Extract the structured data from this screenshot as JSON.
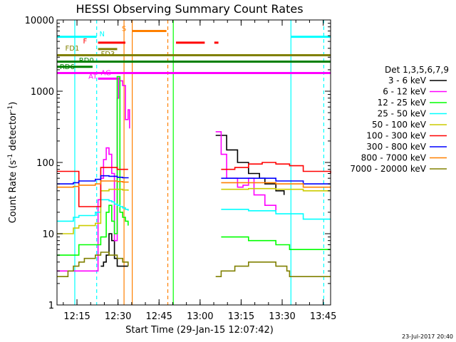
{
  "chart_data": {
    "type": "line",
    "title": "HESSI Observing Summary Count Rates",
    "xlabel": "Start Time (29-Jan-15 12:07:42)",
    "ylabel": "Count Rate (s",
    "ylabel_sup1": "-1",
    "ylabel_mid": " detector",
    "ylabel_sup2": "-1",
    "ylabel_end": ")",
    "footer": "23-Jul-2017 20:40",
    "x_unit": "minutes since 12:07:42",
    "xlim": [
      0,
      100
    ],
    "ylim": [
      1,
      10000
    ],
    "yscale": "log",
    "x_ticks": [
      "12:15",
      "12:30",
      "12:45",
      "13:00",
      "13:15",
      "13:30",
      "13:45"
    ],
    "x_tick_values": [
      7.3,
      22.3,
      37.3,
      52.3,
      67.3,
      82.3,
      97.3
    ],
    "y_ticks": [
      "1",
      "10",
      "100",
      "1000",
      "10000"
    ],
    "y_tick_values": [
      1,
      10,
      100,
      1000,
      10000
    ],
    "legend_title": "Det 1,3,5,6,7,9",
    "legend_position": "right",
    "series": [
      {
        "name": "3 - 6 keV",
        "color": "#000000",
        "x": [
          0,
          14,
          16,
          17,
          18,
          19,
          20,
          21,
          22,
          23,
          24,
          25,
          26,
          26.5,
          57,
          58,
          62,
          66,
          70,
          74,
          76,
          80,
          83,
          84
        ],
        "values": [
          0,
          0,
          3.5,
          4,
          5,
          10,
          8,
          4.5,
          3.5,
          3.5,
          3.5,
          3.5,
          3.5,
          0,
          0,
          240,
          150,
          100,
          70,
          60,
          50,
          40,
          35,
          0
        ]
      },
      {
        "name": "6 - 12 keV",
        "color": "#ff00ff",
        "x": [
          0,
          14,
          15,
          16,
          17,
          18,
          19,
          20,
          21,
          22,
          22.5,
          23,
          24,
          25,
          26,
          26.5,
          57,
          58,
          60,
          62,
          66,
          68,
          70,
          72,
          76,
          80,
          84
        ],
        "values": [
          3,
          3,
          30,
          60,
          110,
          160,
          130,
          70,
          8,
          800,
          1500,
          1400,
          1200,
          400,
          550,
          300,
          0,
          270,
          130,
          60,
          45,
          48,
          60,
          35,
          25,
          20,
          0
        ]
      },
      {
        "name": "12 - 25 keV",
        "color": "#00ff00",
        "x": [
          0,
          6,
          8,
          14,
          16,
          18,
          19,
          20,
          21,
          22,
          23,
          24,
          25,
          26,
          26.5,
          57,
          60,
          70,
          80,
          85,
          90,
          95,
          100
        ],
        "values": [
          5,
          5,
          7,
          7,
          9,
          20,
          25,
          15,
          10,
          1600,
          20,
          17,
          15,
          13,
          0,
          0,
          9,
          8,
          7,
          6,
          6,
          6,
          6
        ]
      },
      {
        "name": "25 - 50 keV",
        "color": "#00ffff",
        "x": [
          0,
          6,
          8,
          14,
          16,
          19,
          20,
          21,
          22,
          23,
          24,
          25,
          26,
          26.5,
          57,
          60,
          70,
          80,
          90,
          100
        ],
        "values": [
          15,
          17,
          18,
          20,
          30,
          29,
          28,
          26,
          25,
          24,
          23,
          22,
          21,
          0,
          0,
          22,
          21,
          19,
          16,
          16
        ]
      },
      {
        "name": "50 - 100 keV",
        "color": "#cccc00",
        "x": [
          0,
          6,
          8,
          14,
          16,
          19,
          22,
          24,
          26,
          26.5,
          57,
          60,
          70,
          80,
          90,
          100
        ],
        "values": [
          10,
          12,
          13,
          14,
          40,
          42,
          42,
          41,
          40,
          0,
          0,
          42,
          43,
          42,
          40,
          40
        ]
      },
      {
        "name": "100 - 300 keV",
        "color": "#ff0000",
        "x": [
          0,
          6,
          8,
          14,
          16,
          19,
          22,
          24,
          26,
          26.5,
          57,
          60,
          65,
          70,
          75,
          80,
          85,
          90,
          100
        ],
        "values": [
          75,
          75,
          24,
          24,
          85,
          85,
          80,
          80,
          80,
          0,
          0,
          80,
          85,
          95,
          100,
          95,
          90,
          75,
          70
        ]
      },
      {
        "name": "300 - 800 keV",
        "color": "#0000ff",
        "x": [
          0,
          6,
          8,
          14,
          16,
          19,
          22,
          24,
          26,
          26.5,
          57,
          60,
          70,
          80,
          90,
          100
        ],
        "values": [
          50,
          52,
          55,
          58,
          65,
          64,
          62,
          61,
          60,
          0,
          0,
          60,
          60,
          55,
          50,
          50
        ]
      },
      {
        "name": "800 - 7000 keV",
        "color": "#ff8000",
        "x": [
          0,
          6,
          8,
          14,
          16,
          19,
          22,
          24,
          26,
          26.5,
          57,
          60,
          70,
          80,
          90,
          100
        ],
        "values": [
          45,
          46,
          48,
          50,
          55,
          55,
          54,
          53,
          52,
          0,
          0,
          52,
          52,
          50,
          45,
          45
        ]
      },
      {
        "name": "7000 - 20000 keV",
        "color": "#808000",
        "x": [
          0,
          4,
          6,
          8,
          10,
          14,
          16,
          19,
          22,
          24,
          26,
          26.5,
          57,
          58,
          60,
          65,
          70,
          75,
          80,
          84,
          85,
          90,
          95,
          100
        ],
        "values": [
          2.5,
          3,
          3.5,
          4,
          4.5,
          5,
          5.5,
          5,
          4.5,
          4,
          3.5,
          0,
          0,
          2.5,
          3,
          3.5,
          4,
          4,
          3.5,
          3,
          2.5,
          2.5,
          2.5,
          2.5
        ]
      }
    ],
    "annotations": [
      {
        "label": "N",
        "color": "#00ffff",
        "y": 5800,
        "segments": [
          [
            0,
            14.5
          ],
          [
            85.5,
            100
          ]
        ],
        "label_x": 15.5,
        "label_y": 6300,
        "label_anchor": "start"
      },
      {
        "label": "S",
        "color": "#ff8000",
        "y": 7000,
        "segments": [
          [
            27.5,
            40
          ]
        ],
        "label_x": 24.5,
        "label_y": 7500,
        "label_anchor": "middle"
      },
      {
        "label": "F",
        "color": "#ff0000",
        "y": 4800,
        "segments": [
          [
            15,
            25
          ],
          [
            43.5,
            54
          ],
          [
            57.5,
            59
          ]
        ],
        "label_x": 9.5,
        "label_y": 5000,
        "label_anchor": "start"
      },
      {
        "label": "FD1",
        "color": "#808000",
        "y": 3900,
        "segments": [
          [
            15,
            22
          ]
        ],
        "label_x": 3,
        "label_y": 4000,
        "label_anchor": "start"
      },
      {
        "label": "FD3",
        "color": "#808000",
        "y": 3200,
        "segments": [
          [
            0,
            100
          ]
        ],
        "label_x": 16,
        "label_y": 3300,
        "label_anchor": "start"
      },
      {
        "label": "RD0",
        "color": "#008000",
        "y": 2600,
        "segments": [
          [
            0,
            100
          ]
        ],
        "label_x": 8,
        "label_y": 2700,
        "label_anchor": "start"
      },
      {
        "label": "RD6",
        "color": "#008000",
        "y": 2200,
        "segments": [
          [
            0,
            13
          ]
        ],
        "label_x": 1,
        "label_y": 2200,
        "label_anchor": "start"
      },
      {
        "label": "AT",
        "color": "#ff00ff",
        "y": 1800,
        "segments": [
          [
            0,
            100
          ]
        ],
        "label_x": 11.5,
        "label_y": 1600,
        "label_anchor": "start"
      },
      {
        "label": "AG",
        "color": "#ff00ff",
        "y": 1500,
        "segments": [
          [
            15,
            23
          ]
        ],
        "label_x": 16,
        "label_y": 1800,
        "label_anchor": "start"
      }
    ],
    "vertical_markers": [
      {
        "x": 6.5,
        "color": "#00ffff",
        "dashed": false
      },
      {
        "x": 14.5,
        "color": "#00ffff",
        "dashed": true
      },
      {
        "x": 24.5,
        "color": "#ff8000",
        "dashed": false
      },
      {
        "x": 27.5,
        "color": "#ff8000",
        "dashed": false
      },
      {
        "x": 40.5,
        "color": "#ff8000",
        "dashed": true
      },
      {
        "x": 42.5,
        "color": "#00ff00",
        "dashed": false
      },
      {
        "x": 85.5,
        "color": "#00ffff",
        "dashed": false
      },
      {
        "x": 97.5,
        "color": "#00ffff",
        "dashed": true
      }
    ]
  }
}
